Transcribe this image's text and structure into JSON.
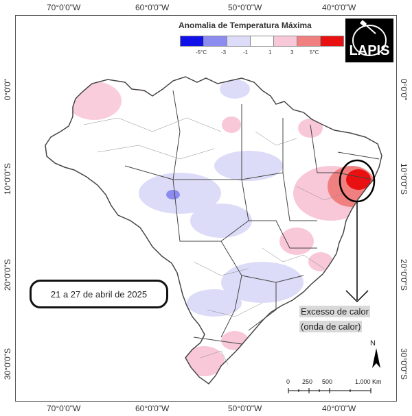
{
  "axes": {
    "top_ticks": [
      "70°0'0\"W",
      "60°0'0\"W",
      "50°0'0\"W",
      "40°0'0\"W"
    ],
    "bottom_ticks": [
      "70°0'0\"W",
      "60°0'0\"W",
      "50°0'0\"W",
      "40°0'0\"W"
    ],
    "left_ticks": [
      "0°0'0\"",
      "10°0'0\"S",
      "20°0'0\"S",
      "30°0'0\"S"
    ],
    "right_ticks": [
      "0°0'0\"",
      "10°0'0\"S",
      "20°0'0\"S",
      "30°0'0\"S"
    ]
  },
  "legend": {
    "title": "Anomalia de Temperatura Máxima",
    "labels": [
      "-5°C",
      "-3",
      "-1",
      "1",
      "3",
      "5°C"
    ],
    "colors": [
      "#1010e8",
      "#8c8cf0",
      "#dcdcf8",
      "#ffffff",
      "#f8c8d8",
      "#f08080",
      "#e81010"
    ]
  },
  "logo": {
    "text": "LAPIS"
  },
  "period": "21 a 27 de abril de 2025",
  "annotation": {
    "line1": "Excesso de calor",
    "line2": "(onda de calor)"
  },
  "north_label": "N",
  "scale": {
    "labels": [
      "0",
      "250",
      "500",
      "1.000 Km"
    ]
  }
}
